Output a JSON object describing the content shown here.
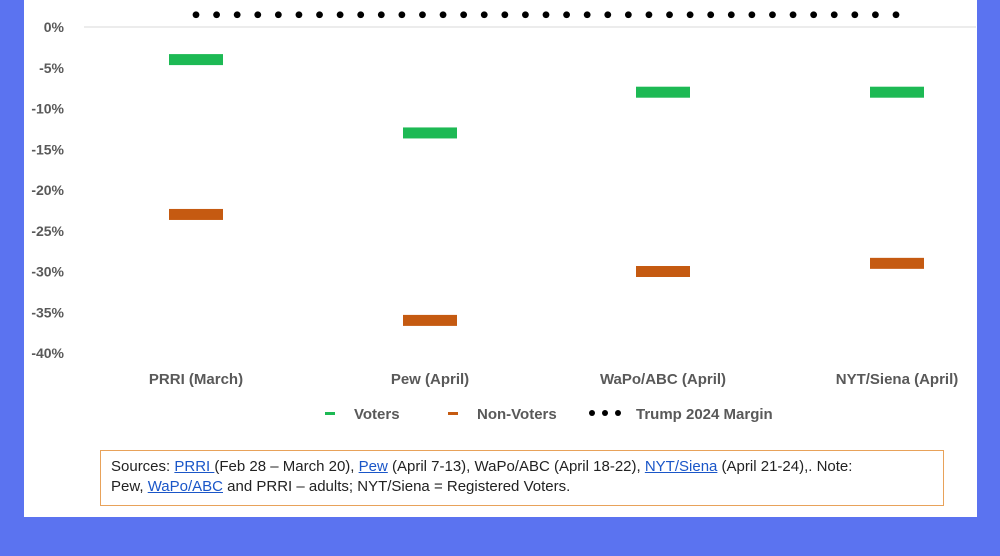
{
  "colors": {
    "background": "#5b73f0",
    "voters": "#1db954",
    "non_voters": "#c55a11",
    "margin": "#000000",
    "source_border": "#e8a25a",
    "link": "#1a56c8"
  },
  "chart_data": {
    "type": "scatter",
    "categories": [
      "PRRI (March)",
      "Pew (April)",
      "WaPo/ABC (April)",
      "NYT/Siena (April)"
    ],
    "series": [
      {
        "name": "Voters",
        "marker": "dash",
        "values": [
          -4,
          -13,
          -8,
          -8
        ]
      },
      {
        "name": "Non-Voters",
        "marker": "dash",
        "values": [
          -23,
          -36,
          -30,
          -29
        ]
      },
      {
        "name": "Trump 2024 Margin",
        "marker": "dotted-line",
        "values": [
          1.5,
          1.5,
          1.5,
          1.5
        ]
      }
    ],
    "yticks": [
      0,
      -5,
      -10,
      -15,
      -20,
      -25,
      -30,
      -35,
      -40
    ],
    "ytick_labels": [
      "0%",
      "-5%",
      "-10%",
      "-15%",
      "-20%",
      "-25%",
      "-30%",
      "-35%",
      "-40%"
    ],
    "ylim": [
      -40,
      2
    ],
    "grid": false,
    "legend_position": "bottom"
  },
  "sources": {
    "prefix": "Sources: ",
    "prri": "PRRI ",
    "prri_dates": "(Feb 28 – March 20), ",
    "pew": "Pew",
    "pew_dates": " (April 7-13), WaPo/ABC (April 18-22), ",
    "nyt": "NYT/Siena",
    "nyt_dates": " (April 21-24),. Note:",
    "pew2": "Pew, ",
    "wapo": "WaPo/ABC",
    "tail": " and PRRI – adults; NYT/Siena = Registered Voters."
  }
}
